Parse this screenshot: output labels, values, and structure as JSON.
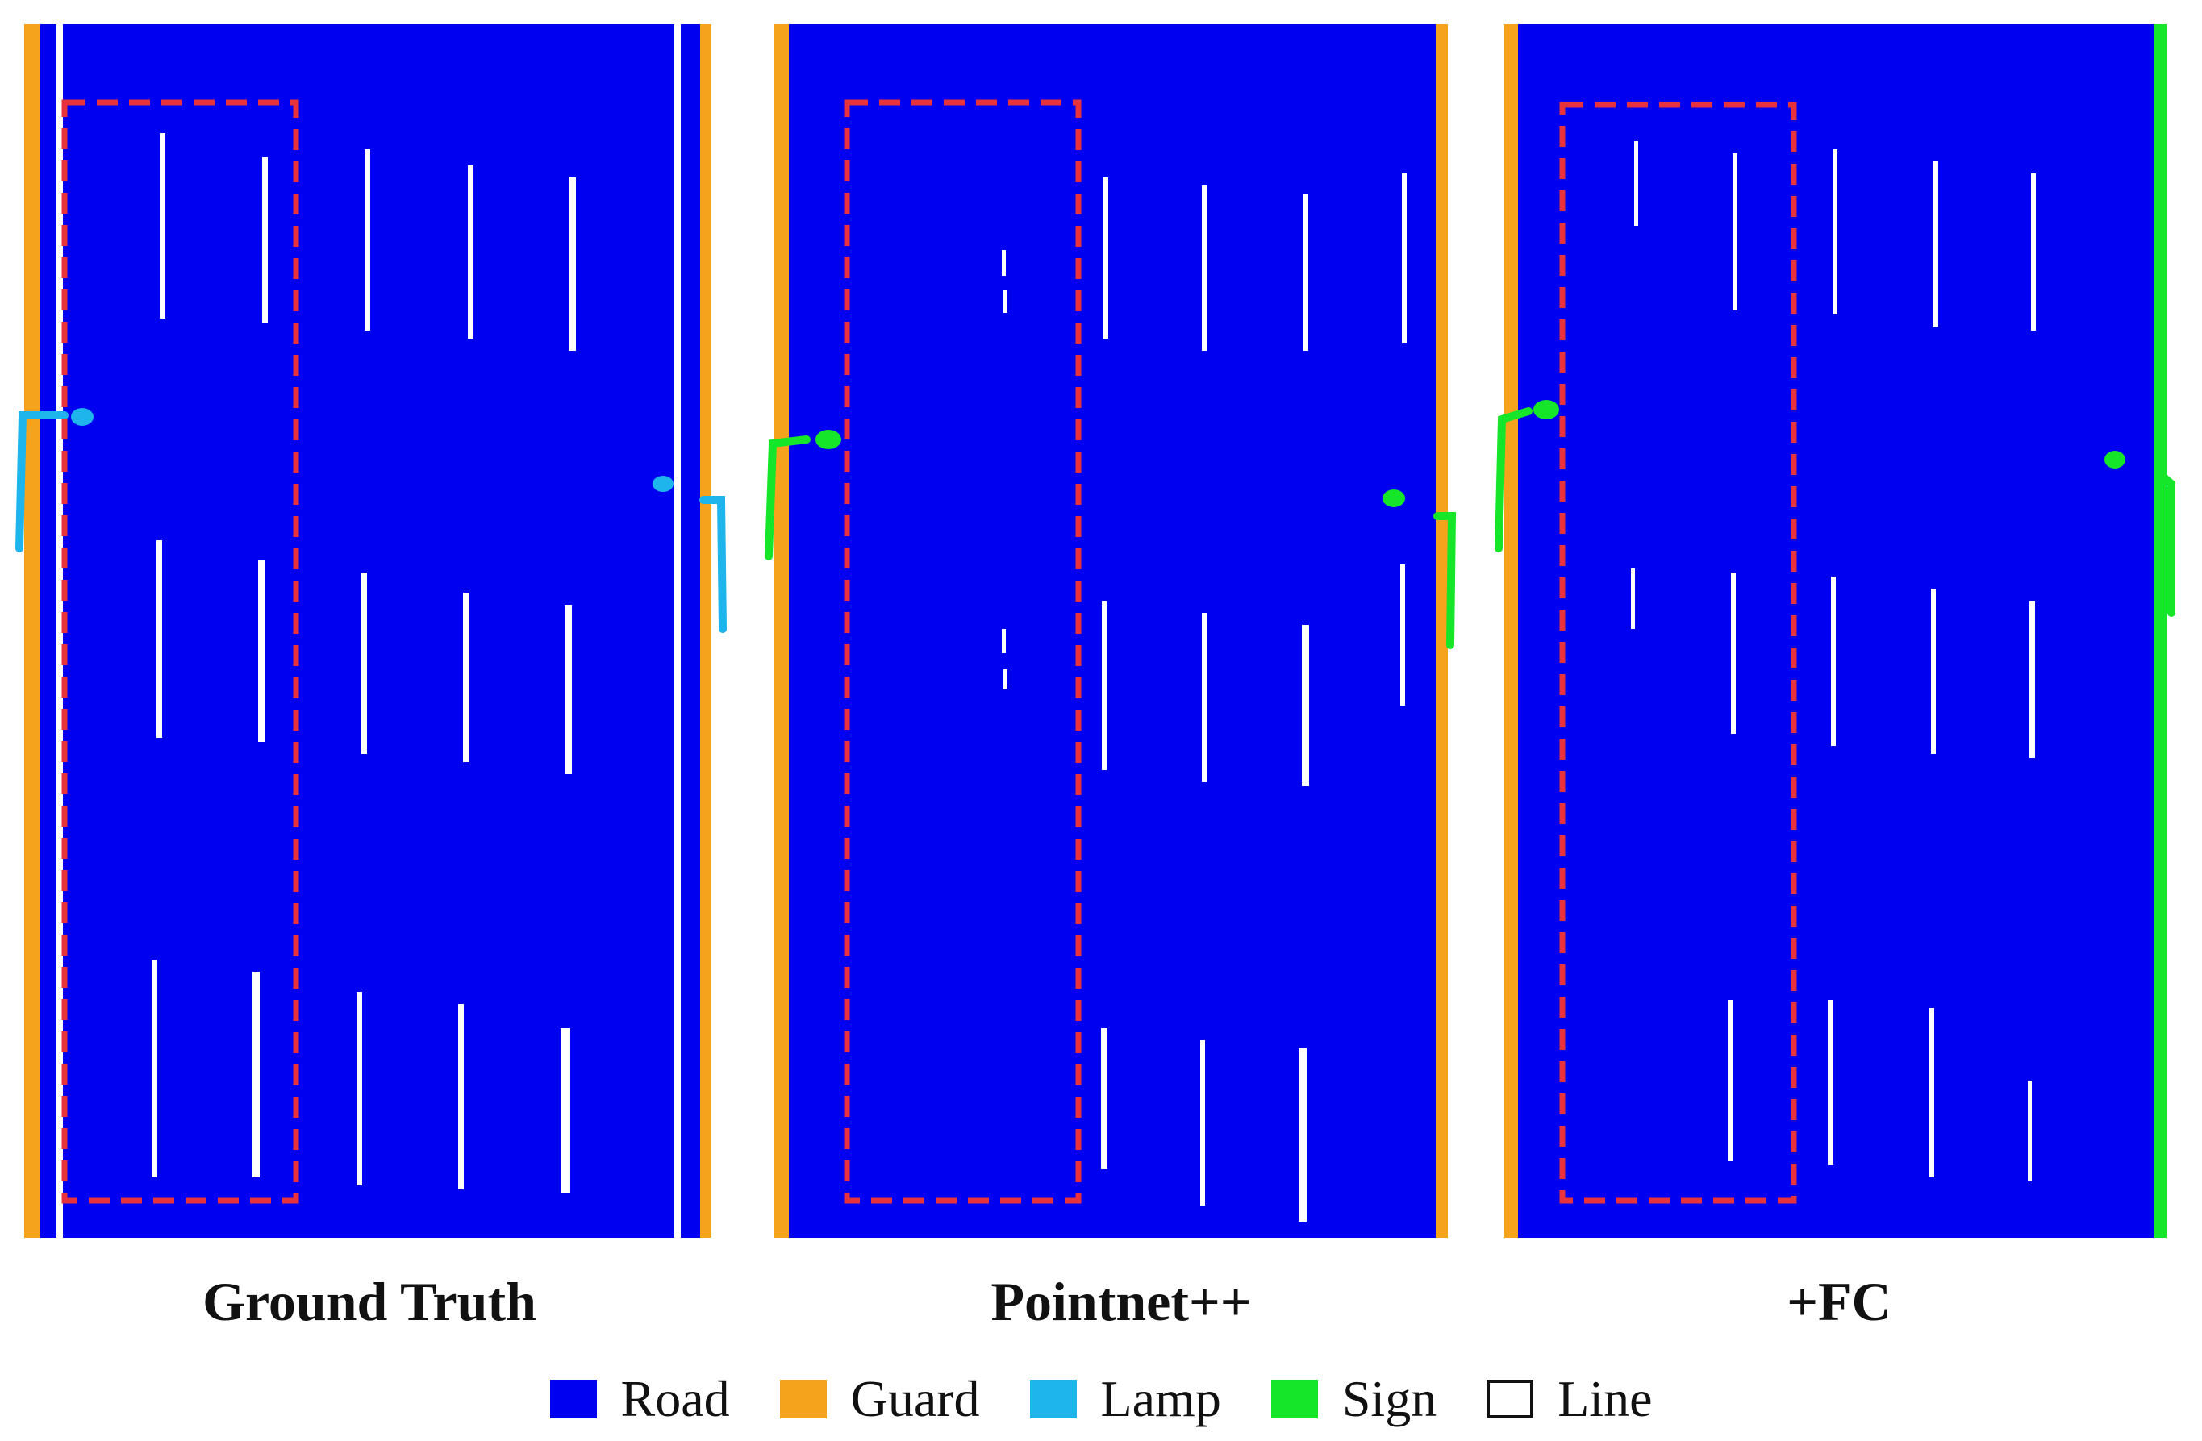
{
  "panels": [
    {
      "label": "Ground Truth",
      "lamp_class": "Lamp"
    },
    {
      "label": "Pointnet++",
      "lamp_class": "Sign"
    },
    {
      "label": "+FC",
      "lamp_class": "Sign"
    }
  ],
  "legend": [
    {
      "label": "Road",
      "color": "#0000f0"
    },
    {
      "label": "Guard",
      "color": "#f5a21c"
    },
    {
      "label": "Lamp",
      "color": "#1eb4ec"
    },
    {
      "label": "Sign",
      "color": "#16e62a"
    },
    {
      "label": "Line",
      "color": "#ffffff"
    }
  ],
  "colors": {
    "highlight_box": "#e8323c",
    "line_marking": "#ffffff"
  }
}
